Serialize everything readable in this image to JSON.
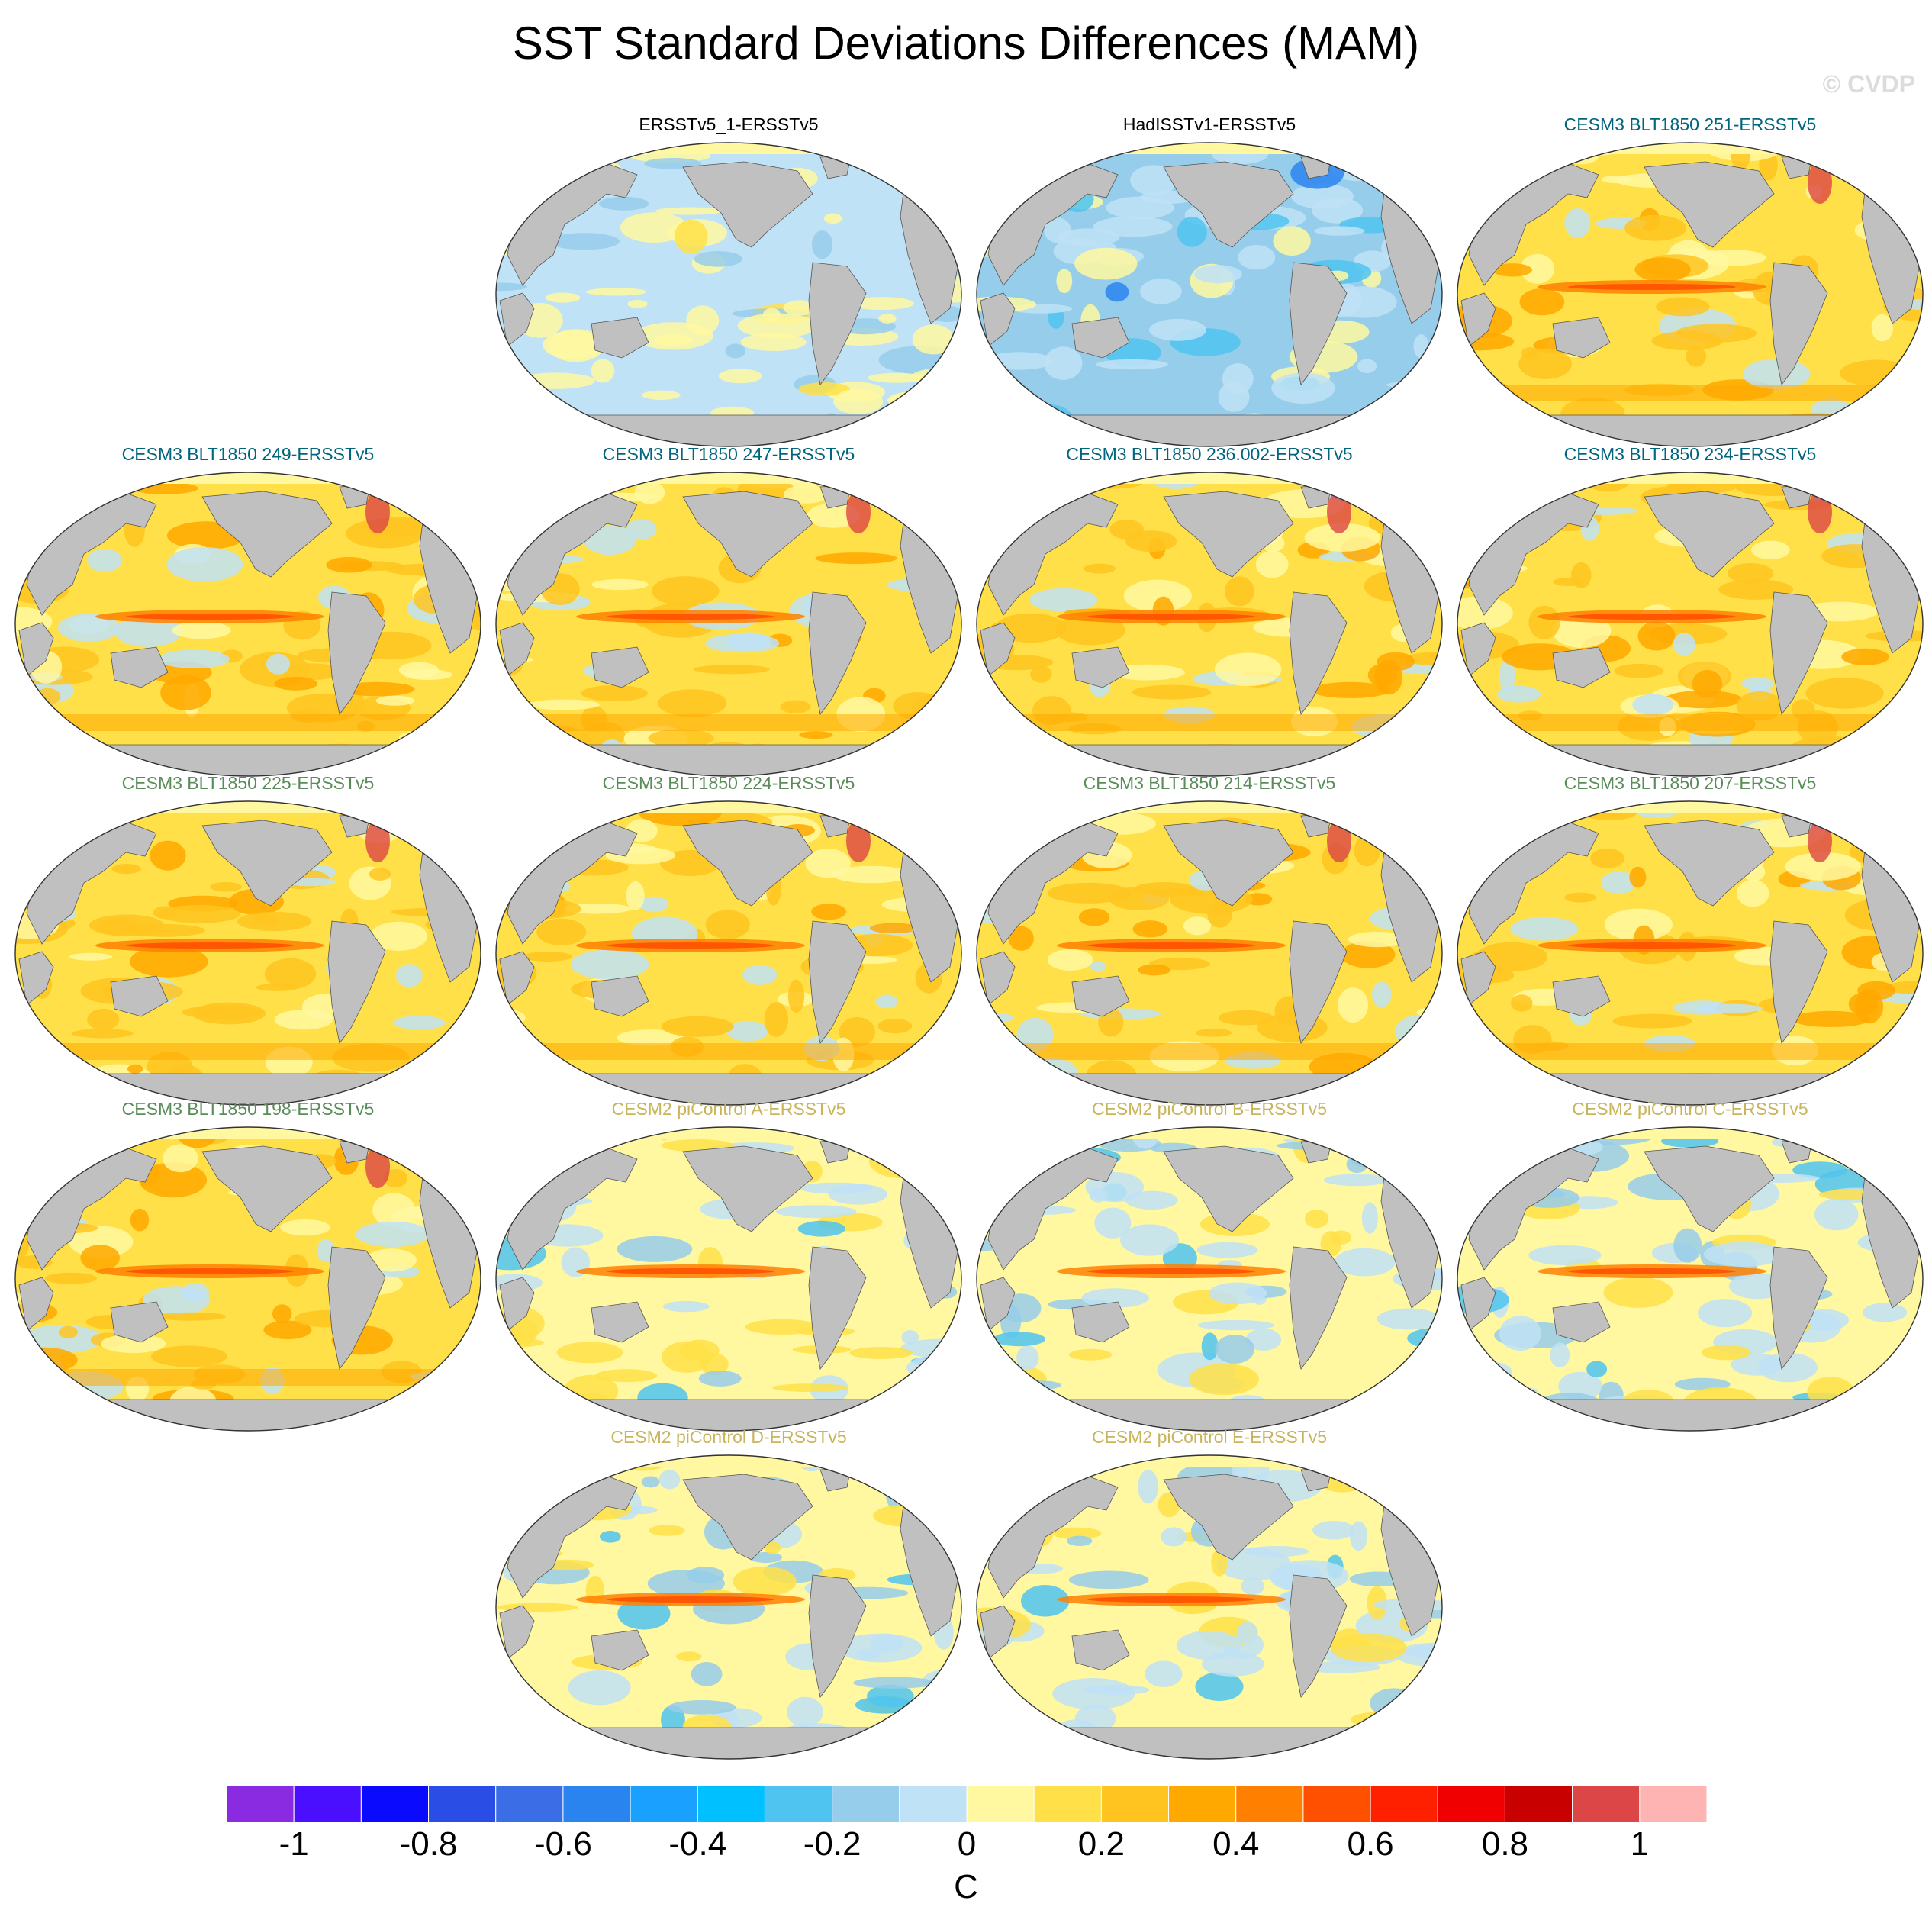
{
  "title": "SST Standard Deviations Differences (MAM)",
  "watermark": "© CVDP",
  "panels": [
    {
      "label": "ERSSTv5_1-ERSSTv5",
      "color": "#000000",
      "pattern": "obs1"
    },
    {
      "label": "HadISSTv1-ERSSTv5",
      "color": "#000000",
      "pattern": "obs2"
    },
    {
      "label": "CESM3 BLT1850 251-ERSSTv5",
      "color": "#00657d",
      "pattern": "warm"
    },
    {
      "label": "CESM3 BLT1850 249-ERSSTv5",
      "color": "#00657d",
      "pattern": "warm"
    },
    {
      "label": "CESM3 BLT1850 247-ERSSTv5",
      "color": "#00657d",
      "pattern": "warm"
    },
    {
      "label": "CESM3 BLT1850 236.002-ERSSTv5",
      "color": "#00657d",
      "pattern": "warm"
    },
    {
      "label": "CESM3 BLT1850 234-ERSSTv5",
      "color": "#00657d",
      "pattern": "warm"
    },
    {
      "label": "CESM3 BLT1850 225-ERSSTv5",
      "color": "#5a8c5a",
      "pattern": "warm"
    },
    {
      "label": "CESM3 BLT1850 224-ERSSTv5",
      "color": "#5a8c5a",
      "pattern": "warm"
    },
    {
      "label": "CESM3 BLT1850 214-ERSSTv5",
      "color": "#5a8c5a",
      "pattern": "warm"
    },
    {
      "label": "CESM3 BLT1850 207-ERSSTv5",
      "color": "#5a8c5a",
      "pattern": "warm"
    },
    {
      "label": "CESM3 BLT1850 198-ERSSTv5",
      "color": "#5a8c5a",
      "pattern": "warm"
    },
    {
      "label": "CESM2 piControl A-ERSSTv5",
      "color": "#c8b45a",
      "pattern": "mixed"
    },
    {
      "label": "CESM2 piControl B-ERSSTv5",
      "color": "#c8b45a",
      "pattern": "mixed"
    },
    {
      "label": "CESM2 piControl C-ERSSTv5",
      "color": "#c8b45a",
      "pattern": "mixed"
    },
    {
      "label": "CESM2 piControl D-ERSSTv5",
      "color": "#c8b45a",
      "pattern": "mixed"
    },
    {
      "label": "CESM2 piControl E-ERSSTv5",
      "color": "#c8b45a",
      "pattern": "mixed"
    }
  ],
  "colorbar": {
    "colors": [
      "#8a2be2",
      "#4b0fff",
      "#0a0aff",
      "#2a4de6",
      "#3a6de6",
      "#2a84f0",
      "#1aa0ff",
      "#00c0ff",
      "#50c4f0",
      "#96cdea",
      "#bfe2f6",
      "#fff8a0",
      "#ffe048",
      "#ffc420",
      "#ffa800",
      "#ff8000",
      "#ff5000",
      "#ff2000",
      "#f00000",
      "#c80000",
      "#dc4646",
      "#ffb4b4"
    ],
    "labels": [
      "-1",
      "-0.8",
      "-0.6",
      "-0.4",
      "-0.2",
      "0",
      "0.2",
      "0.4",
      "0.6",
      "0.8",
      "1"
    ],
    "unit": "C"
  }
}
